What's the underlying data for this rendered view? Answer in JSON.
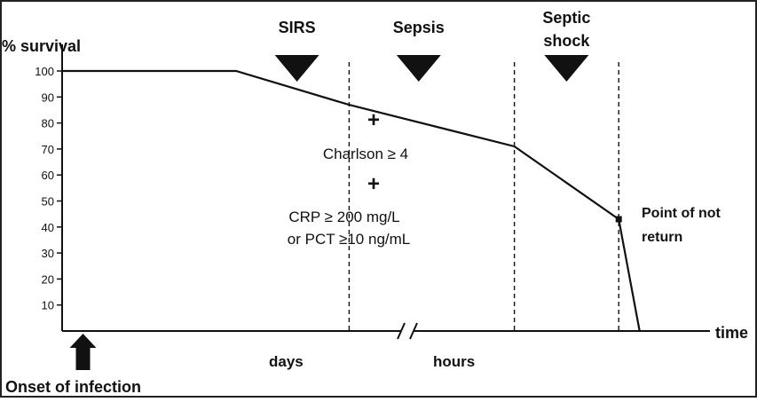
{
  "chart_data": {
    "type": "line",
    "ylabel": "% survival",
    "xlabel": "time",
    "ylim": [
      0,
      100
    ],
    "yticks": [
      10,
      20,
      30,
      40,
      50,
      60,
      70,
      80,
      90,
      100
    ],
    "x_segments": [
      "days",
      "hours"
    ],
    "series": [
      {
        "x": [
          0,
          1.0,
          1.65,
          2.6,
          3.2,
          3.32
        ],
        "y": [
          100,
          100,
          87,
          71,
          43,
          0
        ]
      }
    ],
    "stage_boundaries": [
      1.65,
      2.6,
      3.2
    ],
    "stages": [
      {
        "label": "SIRS",
        "x": 1.35
      },
      {
        "label": "Sepsis",
        "x": 2.05
      },
      {
        "label": "Septic shock",
        "x": 2.9
      }
    ],
    "axis_break_x": 1.4,
    "criteria": [
      "+",
      "Charlson ≥ 4",
      "+",
      "CRP ≥ 200 mg/L",
      "or PCT ≥10 ng/mL"
    ],
    "point_of_no_return": {
      "x": 3.2,
      "y": 43,
      "label_line1": "Point of not",
      "label_line2": "return"
    },
    "onset_label": "Onset  of infection",
    "onset_x": 0.12
  }
}
